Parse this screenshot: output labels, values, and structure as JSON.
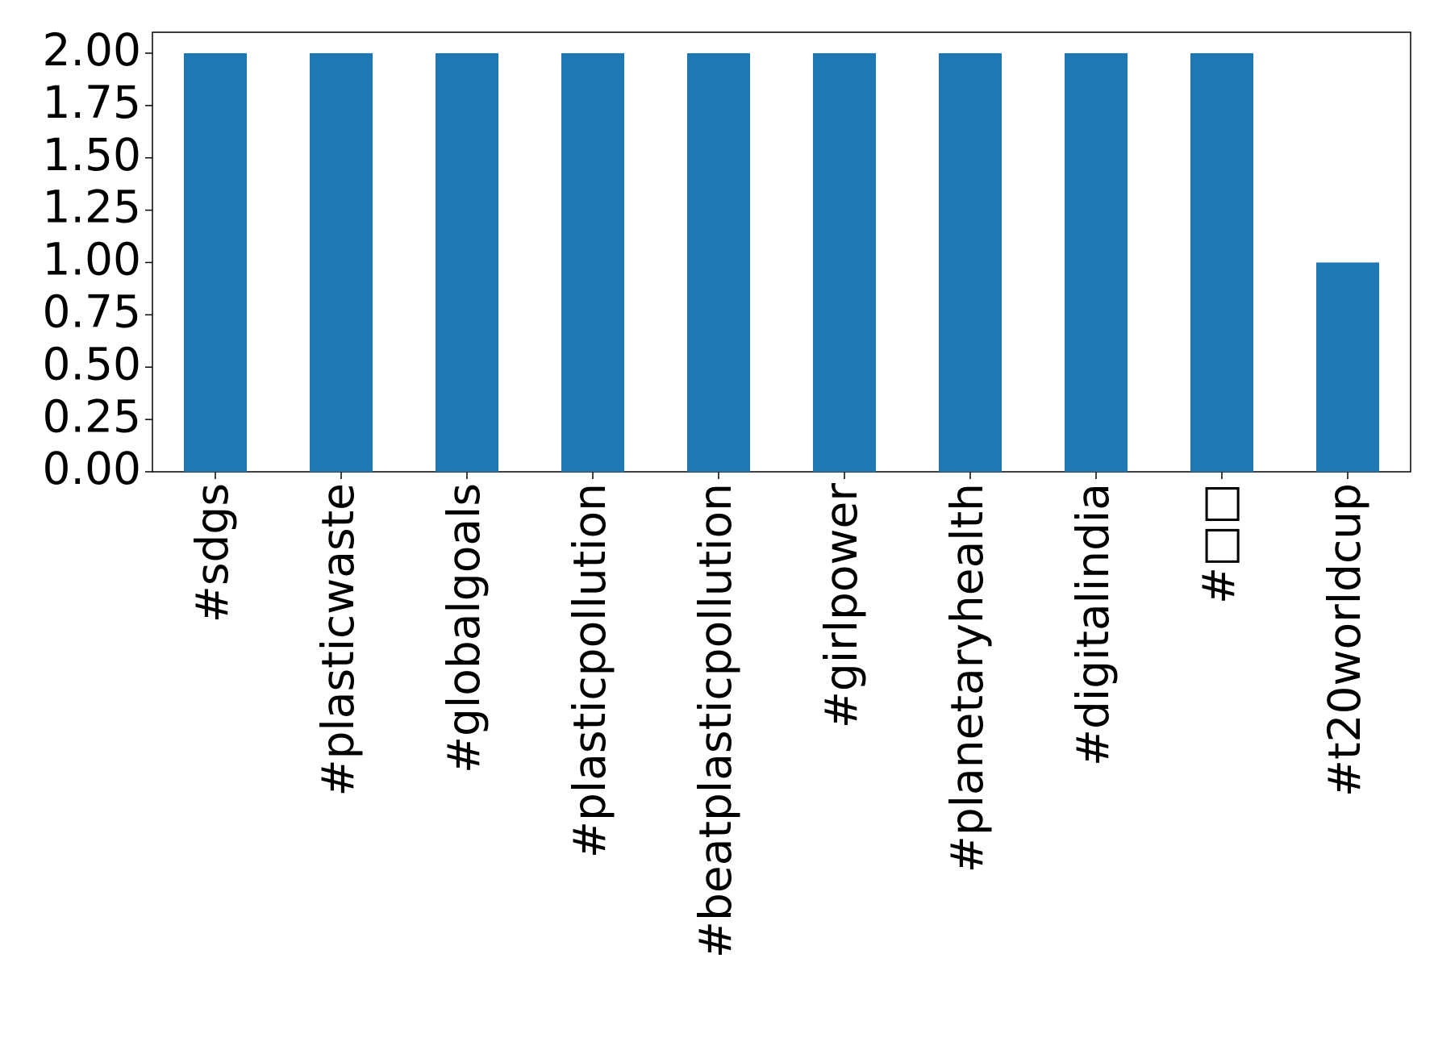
{
  "chart_data": {
    "type": "bar",
    "categories": [
      "#sdgs",
      "#plasticwaste",
      "#globalgoals",
      "#plasticpollution",
      "#beatplasticpollution",
      "#girlpower",
      "#planetaryhealth",
      "#digitalindia",
      "#□□",
      "#t20worldcup"
    ],
    "values": [
      2,
      2,
      2,
      2,
      2,
      2,
      2,
      2,
      2,
      1
    ],
    "color": "#1f77b4",
    "ylim": [
      0,
      2.1
    ],
    "yticks": [
      {
        "value": 0,
        "label": "0.00"
      },
      {
        "value": 0.25,
        "label": "0.25"
      },
      {
        "value": 0.5,
        "label": "0.50"
      },
      {
        "value": 0.75,
        "label": "0.75"
      },
      {
        "value": 1,
        "label": "1.00"
      },
      {
        "value": 1.25,
        "label": "1.25"
      },
      {
        "value": 1.5,
        "label": "1.50"
      },
      {
        "value": 1.75,
        "label": "1.75"
      },
      {
        "value": 2,
        "label": "2.00"
      }
    ],
    "grid": false
  }
}
